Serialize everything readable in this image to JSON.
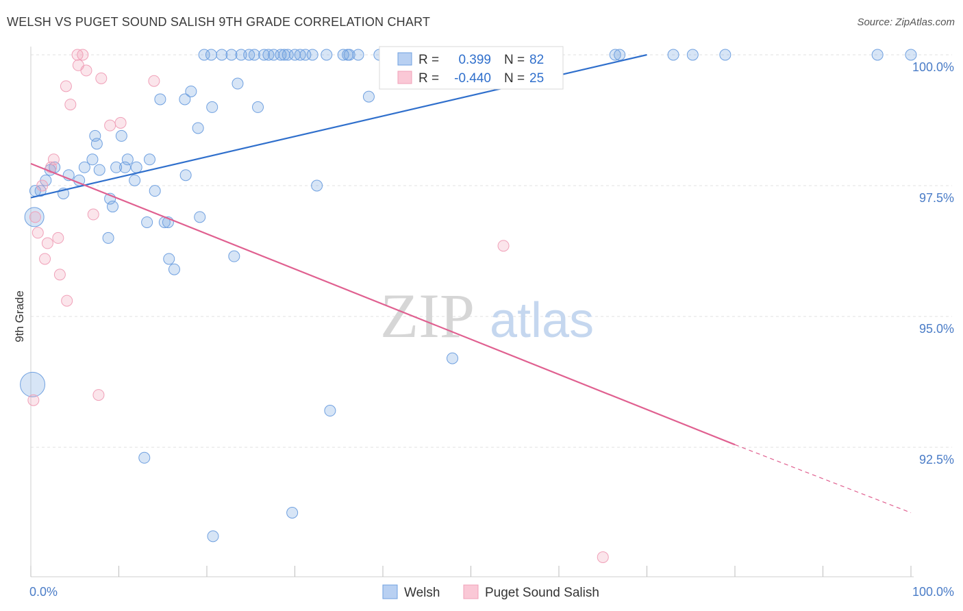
{
  "title": "WELSH VS PUGET SOUND SALISH 9TH GRADE CORRELATION CHART",
  "source": "Source: ZipAtlas.com",
  "colors": {
    "welsh": "#6fa0e0",
    "welsh_line": "#2f6fcc",
    "salish": "#f0a0b8",
    "salish_line": "#e06090",
    "tick": "#4a7cc7"
  },
  "legend": {
    "welsh": {
      "r_label": "R =",
      "r_value": "0.399",
      "n_label": "N =",
      "n_value": "82"
    },
    "salish": {
      "r_label": "R =",
      "r_value": "-0.440",
      "n_label": "N =",
      "n_value": "25"
    }
  },
  "watermark": {
    "zip": "ZIP",
    "atlas": "atlas"
  },
  "chart_data": {
    "type": "scatter",
    "xlabel": "",
    "ylabel": "9th Grade",
    "xlim": [
      0,
      100
    ],
    "ylim": [
      89.6,
      100.25
    ],
    "y_ticks": [
      {
        "value": 100.0,
        "label": "100.0%"
      },
      {
        "value": 97.5,
        "label": "97.5%"
      },
      {
        "value": 95.0,
        "label": "95.0%"
      },
      {
        "value": 92.5,
        "label": "92.5%"
      }
    ],
    "x_tick_labels": {
      "left": "0.0%",
      "right": "100.0%"
    },
    "grid": true,
    "legend_position": "bottom",
    "series": [
      {
        "name": "Welsh",
        "trend": {
          "x0": 0,
          "y0": 97.27,
          "x1": 70,
          "y1": 100.0,
          "dashed_to": null
        },
        "points": [
          [
            0.5,
            97.4
          ],
          [
            1.1,
            97.4
          ],
          [
            1.7,
            97.6
          ],
          [
            2.2,
            97.8
          ],
          [
            2.7,
            97.85
          ],
          [
            3.7,
            97.35
          ],
          [
            4.3,
            97.7
          ],
          [
            5.5,
            97.6
          ],
          [
            6.1,
            97.85
          ],
          [
            7.0,
            98.0
          ],
          [
            7.5,
            98.3
          ],
          [
            7.3,
            98.45
          ],
          [
            7.8,
            97.8
          ],
          [
            8.8,
            96.5
          ],
          [
            9.0,
            97.25
          ],
          [
            9.3,
            97.1
          ],
          [
            9.7,
            97.85
          ],
          [
            10.3,
            98.45
          ],
          [
            10.7,
            97.85
          ],
          [
            11.0,
            98.0
          ],
          [
            11.8,
            97.6
          ],
          [
            12.0,
            97.85
          ],
          [
            13.2,
            96.8
          ],
          [
            13.5,
            98.0
          ],
          [
            14.1,
            97.4
          ],
          [
            14.7,
            99.15
          ],
          [
            15.2,
            96.8
          ],
          [
            15.6,
            96.8
          ],
          [
            15.7,
            96.1
          ],
          [
            16.3,
            95.9
          ],
          [
            17.5,
            99.15
          ],
          [
            17.6,
            97.7
          ],
          [
            18.2,
            99.3
          ],
          [
            19.0,
            98.6
          ],
          [
            19.2,
            96.9
          ],
          [
            19.7,
            100.0
          ],
          [
            20.5,
            100.0
          ],
          [
            20.6,
            99.0
          ],
          [
            21.7,
            100.0
          ],
          [
            22.8,
            100.0
          ],
          [
            23.1,
            96.15
          ],
          [
            23.5,
            99.45
          ],
          [
            23.9,
            100.0
          ],
          [
            24.8,
            100.0
          ],
          [
            25.4,
            100.0
          ],
          [
            25.8,
            99.0
          ],
          [
            26.5,
            100.0
          ],
          [
            27.0,
            100.0
          ],
          [
            27.6,
            100.0
          ],
          [
            28.4,
            100.0
          ],
          [
            28.8,
            100.0
          ],
          [
            29.2,
            100.0
          ],
          [
            30.6,
            100.0
          ],
          [
            31.2,
            100.0
          ],
          [
            32.0,
            100.0
          ],
          [
            32.5,
            97.5
          ],
          [
            33.6,
            100.0
          ],
          [
            34.0,
            93.2
          ],
          [
            35.5,
            100.0
          ],
          [
            36.2,
            100.0
          ],
          [
            37.2,
            100.0
          ],
          [
            38.4,
            99.2
          ],
          [
            39.6,
            100.0
          ],
          [
            41.2,
            100.0
          ],
          [
            42.6,
            100.0
          ],
          [
            47.9,
            94.2
          ],
          [
            48.8,
            100.0
          ],
          [
            52.6,
            100.0
          ],
          [
            66.4,
            100.0
          ],
          [
            66.9,
            100.0
          ],
          [
            73.0,
            100.0
          ],
          [
            75.2,
            100.0
          ],
          [
            78.9,
            100.0
          ],
          [
            96.2,
            100.0
          ],
          [
            100.0,
            100.0
          ],
          [
            30.0,
            100.0
          ],
          [
            36.0,
            100.0
          ],
          [
            12.9,
            92.3
          ],
          [
            20.7,
            90.8
          ],
          [
            29.7,
            91.25
          ],
          [
            0.4,
            96.9
          ],
          [
            0.2,
            93.7
          ]
        ],
        "point_sizes": {
          "default": 8,
          "large": [
            [
              0.4,
              96.9,
              14
            ],
            [
              0.2,
              93.7,
              18
            ]
          ]
        }
      },
      {
        "name": "Puget Sound Salish",
        "trend": {
          "x0": 0,
          "y0": 97.92,
          "x1": 80,
          "y1": 92.55,
          "dashed_x1": 100,
          "dashed_y1": 91.25
        },
        "points": [
          [
            0.3,
            93.4
          ],
          [
            0.5,
            96.9
          ],
          [
            0.8,
            96.6
          ],
          [
            1.3,
            97.5
          ],
          [
            1.6,
            96.1
          ],
          [
            1.9,
            96.4
          ],
          [
            2.3,
            97.85
          ],
          [
            2.6,
            98.0
          ],
          [
            3.1,
            96.5
          ],
          [
            3.3,
            95.8
          ],
          [
            4.0,
            99.4
          ],
          [
            4.1,
            95.3
          ],
          [
            4.5,
            99.05
          ],
          [
            5.3,
            100.0
          ],
          [
            5.4,
            99.8
          ],
          [
            5.9,
            100.0
          ],
          [
            6.3,
            99.7
          ],
          [
            7.1,
            96.95
          ],
          [
            7.7,
            93.5
          ],
          [
            8.0,
            99.55
          ],
          [
            9.0,
            98.65
          ],
          [
            10.2,
            98.7
          ],
          [
            14.0,
            99.5
          ],
          [
            53.7,
            96.35
          ],
          [
            65.0,
            90.4
          ]
        ],
        "point_sizes": {
          "default": 8
        }
      }
    ]
  }
}
